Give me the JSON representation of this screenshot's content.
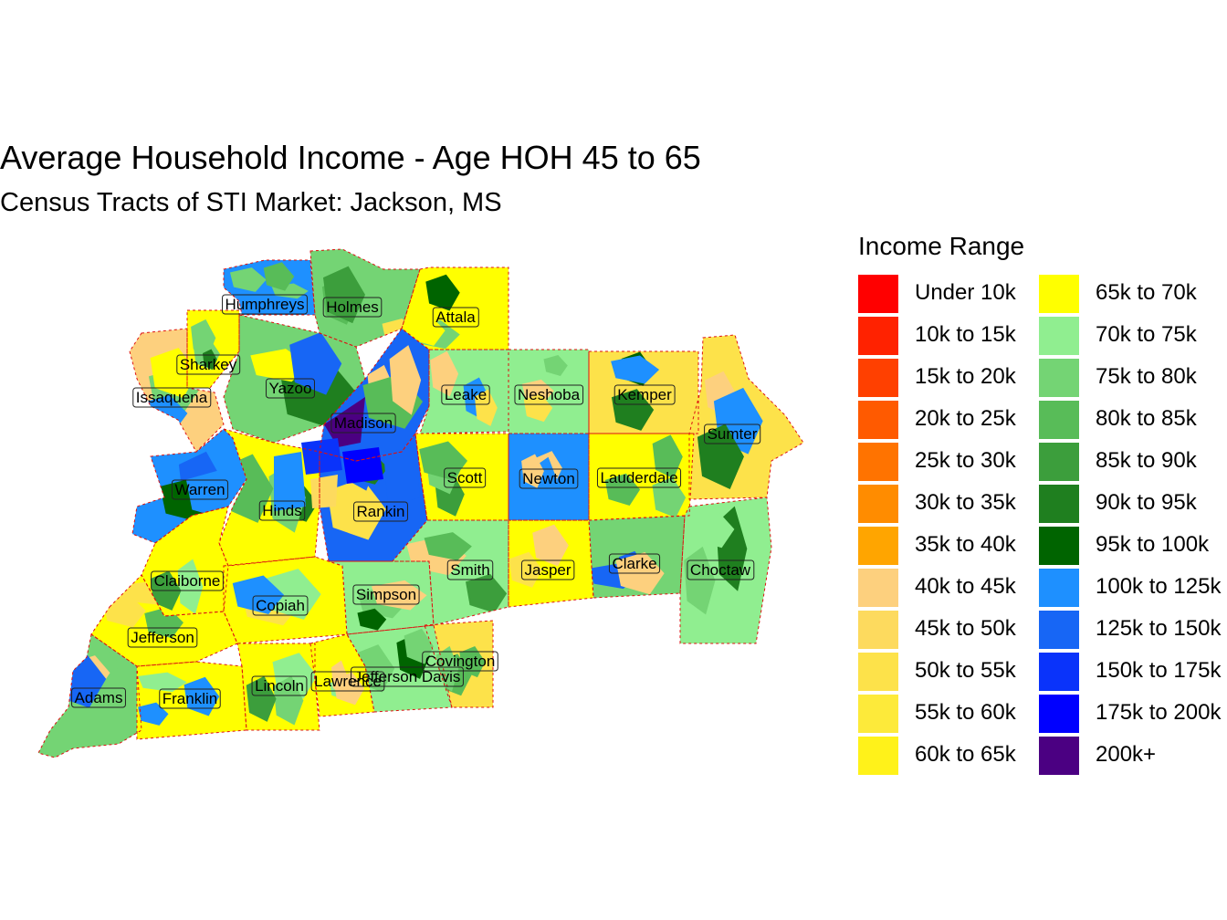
{
  "title": "Average Household Income - Age HOH 45 to 65",
  "subtitle": "Census Tracts of STI Market: Jackson, MS",
  "legend": {
    "title": "Income Range",
    "items": [
      {
        "label": "Under 10k",
        "color": "#FF0000"
      },
      {
        "label": "10k to 15k",
        "color": "#FF2200"
      },
      {
        "label": "15k to 20k",
        "color": "#FF4000"
      },
      {
        "label": "20k to 25k",
        "color": "#FF5A00"
      },
      {
        "label": "25k to 30k",
        "color": "#FF7300"
      },
      {
        "label": "30k to 35k",
        "color": "#FF8C00"
      },
      {
        "label": "35k to 40k",
        "color": "#FFA500"
      },
      {
        "label": "40k to 45k",
        "color": "#FDD07E"
      },
      {
        "label": "45k to 50k",
        "color": "#FDDA5E"
      },
      {
        "label": "50k to 55k",
        "color": "#FDE24A"
      },
      {
        "label": "55k to 60k",
        "color": "#FDEA3A"
      },
      {
        "label": "60k to 65k",
        "color": "#FFF21A"
      },
      {
        "label": "65k to 70k",
        "color": "#FFFF00"
      },
      {
        "label": "70k to 75k",
        "color": "#90EE90"
      },
      {
        "label": "75k to 80k",
        "color": "#74D474"
      },
      {
        "label": "80k to 85k",
        "color": "#58BC58"
      },
      {
        "label": "85k to 90k",
        "color": "#3C9E3C"
      },
      {
        "label": "90k to 95k",
        "color": "#1F7F1F"
      },
      {
        "label": "95k to 100k",
        "color": "#006400"
      },
      {
        "label": "100k to 125k",
        "color": "#1E90FF"
      },
      {
        "label": "125k to 150k",
        "color": "#1766F5"
      },
      {
        "label": "150k to 175k",
        "color": "#0A33FA"
      },
      {
        "label": "175k to 200k",
        "color": "#0000FF"
      },
      {
        "label": "200k+",
        "color": "#4B0082"
      }
    ]
  },
  "counties": [
    {
      "name": "Humphreys",
      "color": "#1E90FF"
    },
    {
      "name": "Holmes",
      "color": "#74D474"
    },
    {
      "name": "Attala",
      "color": "#FFFF00"
    },
    {
      "name": "Sharkey",
      "color": "#FFFF00"
    },
    {
      "name": "Issaquena",
      "color": "#FDD07E"
    },
    {
      "name": "Yazoo",
      "color": "#74D474"
    },
    {
      "name": "Madison",
      "color": "#1766F5"
    },
    {
      "name": "Leake",
      "color": "#90EE90"
    },
    {
      "name": "Neshoba",
      "color": "#90EE90"
    },
    {
      "name": "Kemper",
      "color": "#FDE24A"
    },
    {
      "name": "Sumter",
      "color": "#FDE24A"
    },
    {
      "name": "Warren",
      "color": "#1E90FF"
    },
    {
      "name": "Hinds",
      "color": "#FFFF00"
    },
    {
      "name": "Rankin",
      "color": "#1766F5"
    },
    {
      "name": "Scott",
      "color": "#FFFF00"
    },
    {
      "name": "Newton",
      "color": "#1E90FF"
    },
    {
      "name": "Lauderdale",
      "color": "#FFFF00"
    },
    {
      "name": "Claiborne",
      "color": "#FFFF00"
    },
    {
      "name": "Copiah",
      "color": "#FFFF00"
    },
    {
      "name": "Simpson",
      "color": "#90EE90"
    },
    {
      "name": "Smith",
      "color": "#90EE90"
    },
    {
      "name": "Jasper",
      "color": "#FFFF00"
    },
    {
      "name": "Clarke",
      "color": "#74D474"
    },
    {
      "name": "Choctaw",
      "color": "#90EE90"
    },
    {
      "name": "Jefferson",
      "color": "#FFFF00"
    },
    {
      "name": "Covington",
      "color": "#FDE24A"
    },
    {
      "name": "Jefferson Davis",
      "color": "#90EE90"
    },
    {
      "name": "Lawrence",
      "color": "#FFFF00"
    },
    {
      "name": "Lincoln",
      "color": "#FFFF00"
    },
    {
      "name": "Adams",
      "color": "#74D474"
    },
    {
      "name": "Franklin",
      "color": "#FFFF00"
    }
  ]
}
